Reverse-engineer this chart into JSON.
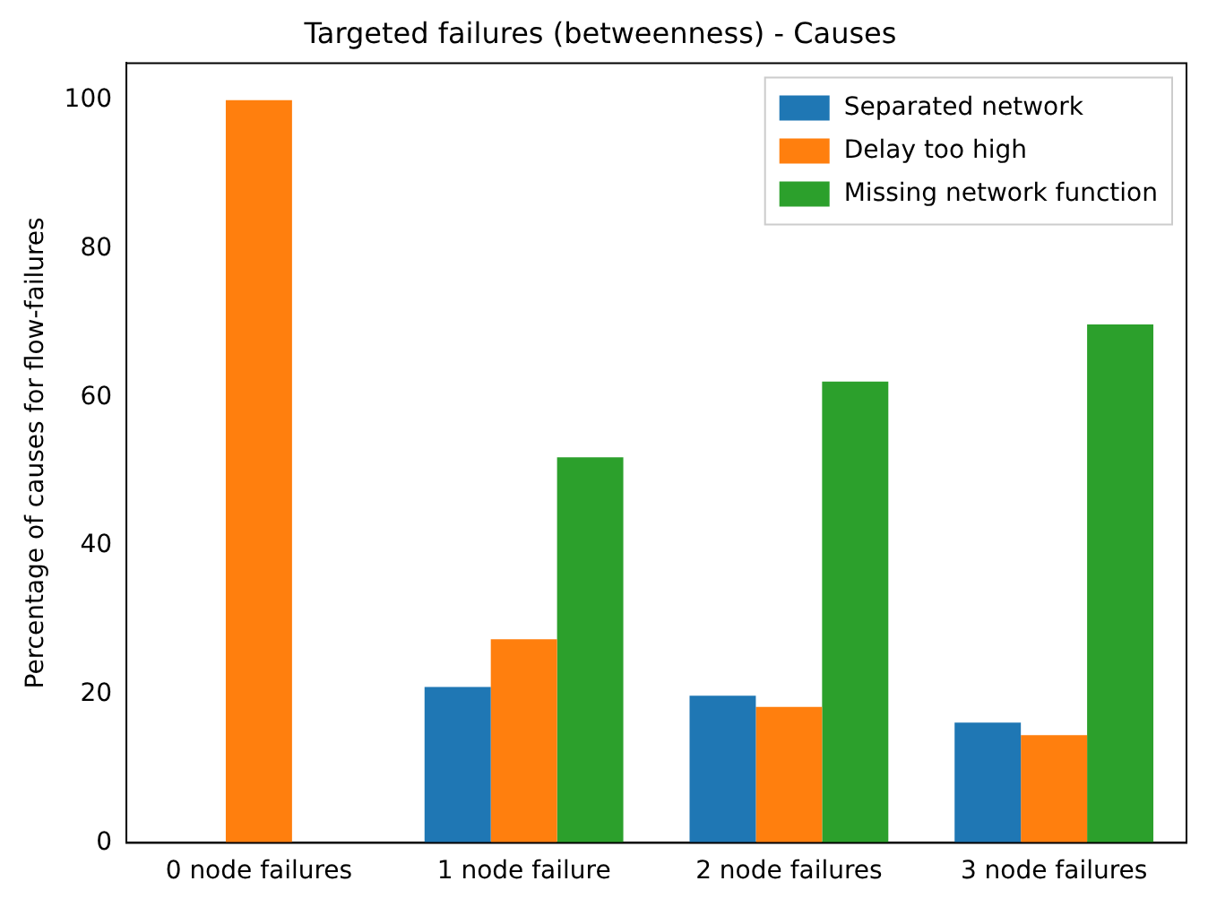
{
  "chart_data": {
    "type": "bar",
    "title": "Targeted failures (betweenness) - Causes",
    "ylabel": "Percentage of causes for flow-failures",
    "categories": [
      "0 node failures",
      "1 node failure",
      "2 node failures",
      "3 node failures"
    ],
    "series": [
      {
        "name": "Separated network",
        "color": "#1f77b4",
        "values": [
          0,
          21,
          19.8,
          16.2
        ]
      },
      {
        "name": "Delay too high",
        "color": "#ff7f0e",
        "values": [
          100,
          27.4,
          18.3,
          14.5
        ]
      },
      {
        "name": "Missing network function",
        "color": "#2ca02c",
        "values": [
          0,
          51.9,
          62.1,
          69.8
        ]
      }
    ],
    "ylim": [
      0,
      105
    ],
    "yticks": [
      0,
      20,
      40,
      60,
      80,
      100
    ],
    "grid": false,
    "legend": "top right"
  }
}
